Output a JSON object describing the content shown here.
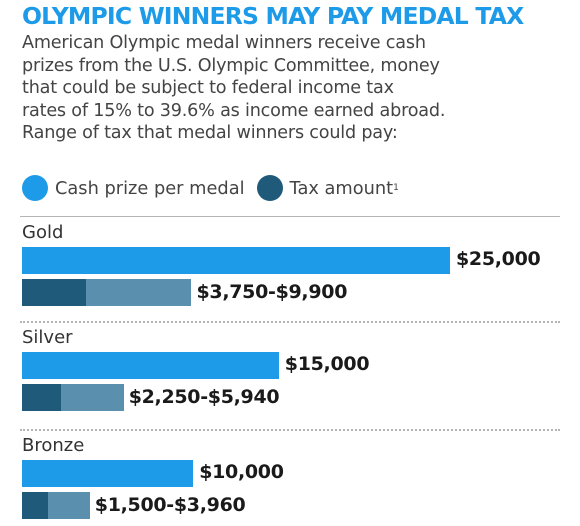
{
  "chart_data": {
    "type": "bar",
    "title": "OLYMPIC WINNERS MAY PAY MEDAL TAX",
    "subtitle_lines": [
      "American Olympic medal winners receive cash",
      "prizes from the U.S. Olympic Committee, money",
      "that could be subject to federal income tax",
      "rates of 15% to 39.6% as income earned abroad.",
      "Range of tax that medal winners could pay:"
    ],
    "legend": [
      {
        "label": "Cash prize per medal",
        "color": "#1e9be8"
      },
      {
        "label": "Tax amount",
        "superscript": "1",
        "color": "#1f5a7a"
      }
    ],
    "categories": [
      "Gold",
      "Silver",
      "Bronze"
    ],
    "series": [
      {
        "name": "Cash prize per medal",
        "values": [
          25000,
          15000,
          10000
        ]
      },
      {
        "name": "Tax amount",
        "ranges": [
          [
            3750,
            9900
          ],
          [
            2250,
            5940
          ],
          [
            1500,
            3960
          ]
        ]
      }
    ],
    "value_labels": {
      "prize": [
        "$25,000",
        "$15,000",
        "$10,000"
      ],
      "tax": [
        "$3,750-$9,900",
        "$2,250-$5,940",
        "$1,500-$3,960"
      ]
    },
    "orientation": "horizontal",
    "legend_position": "top-left",
    "grid": false,
    "colors": {
      "prize": "#1e9be8",
      "tax_low": "#1f5a7a",
      "tax_high": "#5b8fae",
      "title": "#1e9be8"
    }
  }
}
